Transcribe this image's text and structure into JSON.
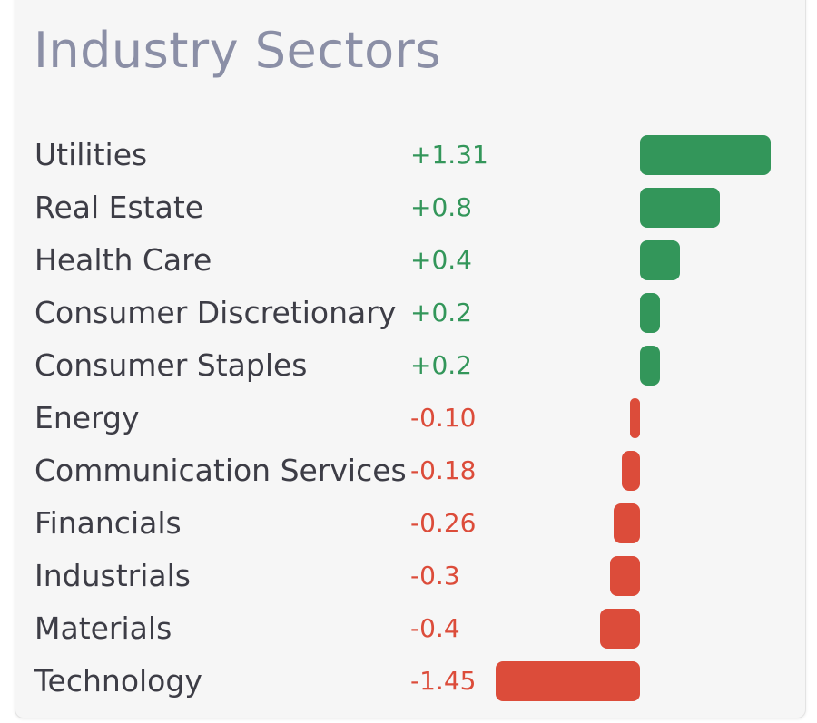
{
  "title": "Industry Sectors",
  "colors": {
    "positive": "#33965a",
    "negative": "#dc4c3a"
  },
  "chart_data": {
    "type": "bar",
    "orientation": "horizontal",
    "title": "Industry Sectors",
    "categories": [
      "Utilities",
      "Real Estate",
      "Health Care",
      "Consumer Discretionary",
      "Consumer Staples",
      "Energy",
      "Communication Services",
      "Financials",
      "Industrials",
      "Materials",
      "Technology"
    ],
    "value_labels": [
      "+1.31",
      "+0.8",
      "+0.4",
      "+0.2",
      "+0.2",
      "-0.10",
      "-0.18",
      "-0.26",
      "-0.3",
      "-0.4",
      "-1.45"
    ],
    "values": [
      1.31,
      0.8,
      0.4,
      0.2,
      0.2,
      -0.1,
      -0.18,
      -0.26,
      -0.3,
      -0.4,
      -1.45
    ]
  }
}
